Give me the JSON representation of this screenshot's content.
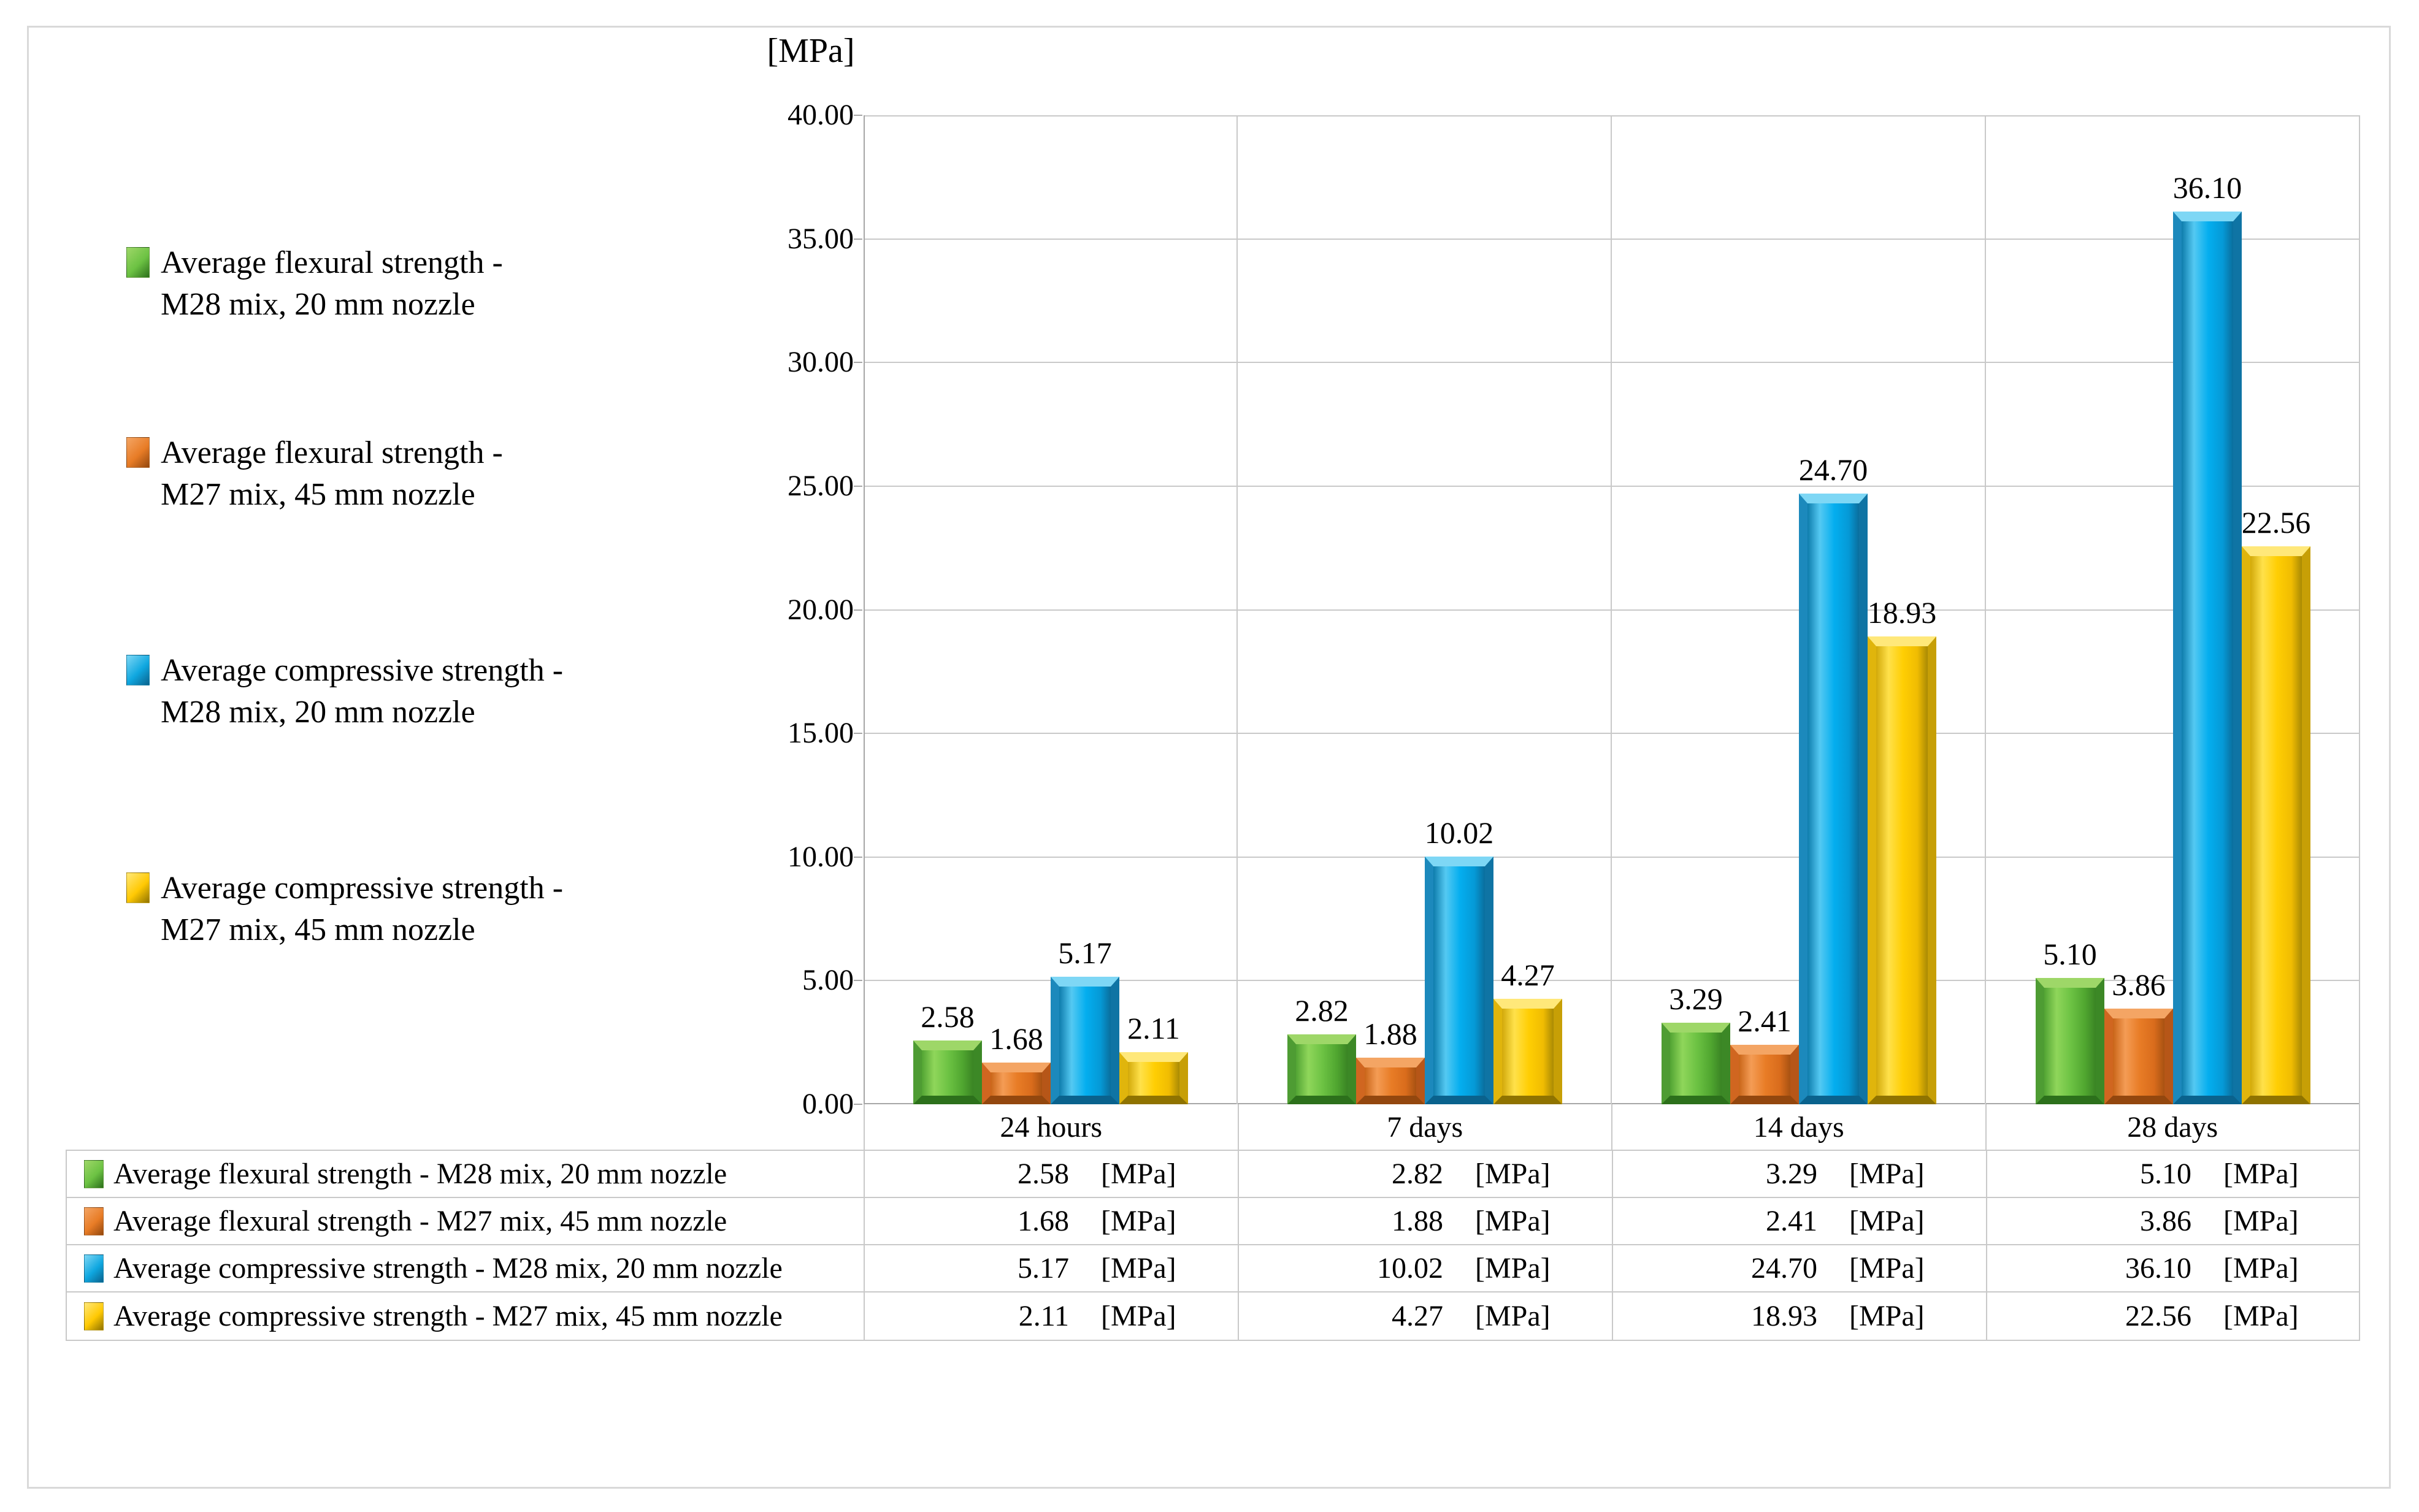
{
  "chart_data": {
    "type": "bar",
    "title": "",
    "ylabel": "[MPa]",
    "xlabel": "",
    "ylim": [
      0,
      40
    ],
    "ytick_step": 5,
    "ytick_labels": [
      "0.00",
      "5.00",
      "10.00",
      "15.00",
      "20.00",
      "25.00",
      "30.00",
      "35.00",
      "40.00"
    ],
    "categories": [
      "24 hours",
      "7 days",
      "14 days",
      "28 days"
    ],
    "grid": "horizontal gridlines with vertical category dividers",
    "legend_position": "left",
    "series": [
      {
        "name": "Average flexural strength - M28 mix, 20 mm nozzle",
        "legend_lines": [
          "Average flexural strength -",
          "M28 mix, 20 mm nozzle"
        ],
        "color": "#6CC243",
        "palette": {
          "top": "#9ED768",
          "left": "#4E9C33",
          "right": "#3C8826",
          "bottom": "#2C701B",
          "grad": [
            "#52A433",
            "#8FD65A",
            "#6CC243",
            "#4FA52F",
            "#3A8424"
          ]
        },
        "values": [
          2.58,
          2.82,
          3.29,
          5.1
        ],
        "labels": [
          "2.58",
          "2.82",
          "3.29",
          "5.10"
        ]
      },
      {
        "name": "Average flexural strength - M27 mix, 45 mm nozzle",
        "legend_lines": [
          "Average flexural strength -",
          "M27 mix, 45 mm nozzle"
        ],
        "color": "#E87C26",
        "palette": {
          "top": "#F4A564",
          "left": "#D06620",
          "right": "#B65618",
          "bottom": "#93470E",
          "grad": [
            "#C96518",
            "#F49C55",
            "#E87C26",
            "#D96C1C",
            "#A85212"
          ]
        },
        "values": [
          1.68,
          1.88,
          2.41,
          3.86
        ],
        "labels": [
          "1.68",
          "1.88",
          "2.41",
          "3.86"
        ]
      },
      {
        "name": "Average compressive strength - M28 mix, 20 mm nozzle",
        "legend_lines": [
          "Average compressive strength -",
          "M28 mix, 20 mm nozzle"
        ],
        "color": "#0FA7E0",
        "palette": {
          "top": "#7ED7F5",
          "left": "#1C89BC",
          "right": "#0F74A4",
          "bottom": "#0A628D",
          "grad": [
            "#0E7CAC",
            "#54C9F2",
            "#04AEEF",
            "#0599D6",
            "#0A6E9D"
          ]
        },
        "values": [
          5.17,
          10.02,
          24.7,
          36.1
        ],
        "labels": [
          "5.17",
          "10.02",
          "24.70",
          "36.10"
        ]
      },
      {
        "name": "Average compressive strength - M27 mix, 45 mm nozzle",
        "legend_lines": [
          "Average compressive strength -",
          "M27 mix, 45 mm nozzle"
        ],
        "color": "#FFC903",
        "palette": {
          "top": "#FFE87A",
          "left": "#E0B50C",
          "right": "#C79F06",
          "bottom": "#8F7300",
          "grad": [
            "#D2A90A",
            "#FFE14A",
            "#FFCE03",
            "#F0BC02",
            "#A98A04"
          ]
        },
        "values": [
          2.11,
          4.27,
          18.93,
          22.56
        ],
        "labels": [
          "2.11",
          "4.27",
          "18.93",
          "22.56"
        ]
      }
    ]
  },
  "table": {
    "unit_label": "[MPa]",
    "column_headers": [
      "24 hours",
      "7 days",
      "14 days",
      "28 days"
    ],
    "rows": [
      {
        "label": "Average flexural strength - M28 mix, 20 mm nozzle",
        "values": [
          "2.58",
          "2.82",
          "3.29",
          "5.10"
        ]
      },
      {
        "label": "Average flexural strength - M27 mix, 45 mm nozzle",
        "values": [
          "1.68",
          "1.88",
          "2.41",
          "3.86"
        ]
      },
      {
        "label": "Average compressive strength - M28 mix, 20 mm nozzle",
        "values": [
          "5.17",
          "10.02",
          "24.70",
          "36.10"
        ]
      },
      {
        "label": "Average compressive strength - M27 mix, 45 mm nozzle",
        "values": [
          "2.11",
          "4.27",
          "18.93",
          "22.56"
        ]
      }
    ]
  },
  "style_colors": {
    "figure_border": "#D9D9D9",
    "gridline": "#C9C9C9",
    "axis_line": "#A6A6A6",
    "text": "#000000"
  }
}
